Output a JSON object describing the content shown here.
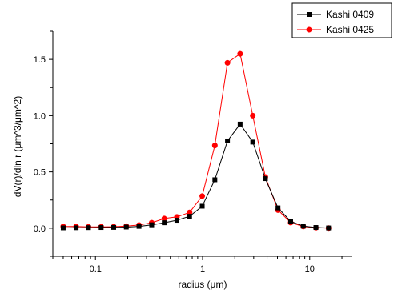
{
  "chart_data": {
    "type": "line",
    "title": "",
    "xlabel": "radius (μm)",
    "ylabel": "dV(r)/dln r (μm^3/μm^2)",
    "xscale": "log",
    "xlim": [
      0.04,
      25
    ],
    "ylim": [
      -0.25,
      1.75
    ],
    "xticks": [
      {
        "value": 0.1,
        "label": "0.1"
      },
      {
        "value": 1,
        "label": "1"
      },
      {
        "value": 10,
        "label": "10"
      }
    ],
    "yticks": [
      {
        "value": 0.0,
        "label": "0.0"
      },
      {
        "value": 0.5,
        "label": "0.5"
      },
      {
        "value": 1.0,
        "label": "1.0"
      },
      {
        "value": 1.5,
        "label": "1.5"
      }
    ],
    "grid": false,
    "legend": "top-right",
    "x": [
      0.05,
      0.066,
      0.086,
      0.113,
      0.148,
      0.194,
      0.255,
      0.335,
      0.439,
      0.576,
      0.756,
      0.992,
      1.302,
      1.708,
      2.241,
      2.94,
      3.857,
      5.06,
      6.641,
      8.713,
      11.432,
      15.0
    ],
    "series": [
      {
        "name": "Kashi 0409",
        "color": "#000000",
        "marker": "square",
        "values": [
          0.003,
          0.004,
          0.005,
          0.006,
          0.007,
          0.01,
          0.016,
          0.03,
          0.048,
          0.07,
          0.105,
          0.195,
          0.43,
          0.775,
          0.925,
          0.765,
          0.44,
          0.18,
          0.06,
          0.018,
          0.006,
          0.002
        ]
      },
      {
        "name": "Kashi 0425",
        "color": "#ff0000",
        "marker": "circle",
        "values": [
          0.015,
          0.015,
          0.012,
          0.012,
          0.013,
          0.018,
          0.028,
          0.048,
          0.085,
          0.1,
          0.14,
          0.285,
          0.735,
          1.47,
          1.55,
          1.0,
          0.455,
          0.16,
          0.05,
          0.015,
          0.004,
          0.001
        ]
      }
    ]
  }
}
